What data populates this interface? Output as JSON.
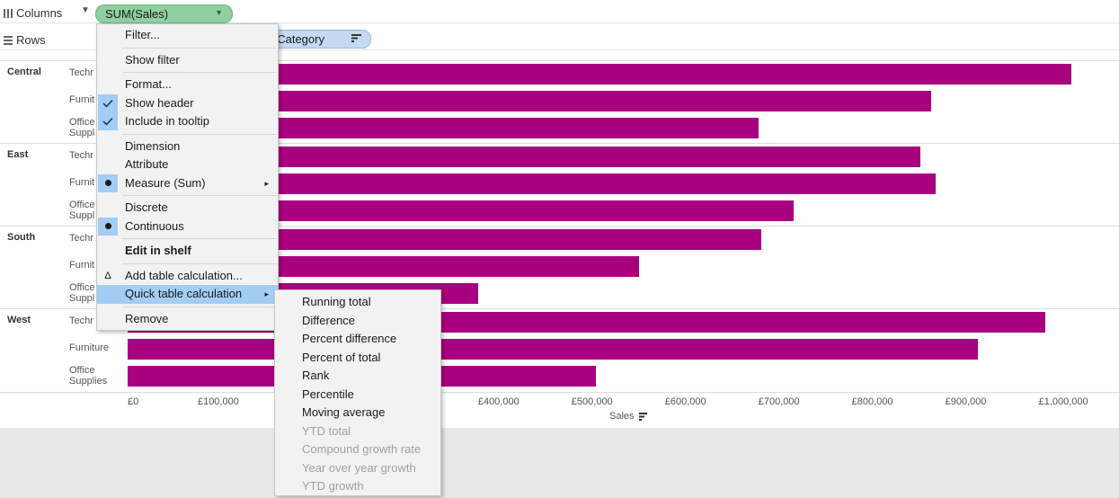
{
  "shelves": {
    "columns_label": "Columns",
    "columns_pill": "SUM(Sales)",
    "rows_label": "Rows",
    "rows_pill_visible": "t Category"
  },
  "chart_data": {
    "type": "bar",
    "orientation": "horizontal",
    "groups": [
      "Central",
      "East",
      "South",
      "West"
    ],
    "category_labels_visible": [
      [
        "Techr",
        "Furnit",
        "Office\nSuppl"
      ],
      [
        "Techr",
        "Furnit",
        "Office\nSuppl"
      ],
      [
        "Techr",
        "Furnit",
        "Office\nSuppl"
      ],
      [
        "Techr",
        "Furniture",
        "Office\nSupplies"
      ]
    ],
    "values": [
      [
        1010000,
        860000,
        675000
      ],
      [
        848000,
        865000,
        713000
      ],
      [
        678000,
        547000,
        375000
      ],
      [
        982000,
        910000,
        501000
      ]
    ],
    "xlim": [
      0,
      1040000
    ],
    "x_ticks": [
      "£0",
      "£100,000",
      "£400,000",
      "£500,000",
      "£600,000",
      "£700,000",
      "£800,000",
      "£900,000",
      "£1,000,000"
    ],
    "x_tick_values": [
      0,
      100000,
      400000,
      500000,
      600000,
      700000,
      800000,
      900000,
      1000000
    ],
    "xlabel": "Sales",
    "bar_color": "#a8007e"
  },
  "context_menu": {
    "items": [
      {
        "label": "Filter...",
        "state": "none"
      },
      {
        "sep": true
      },
      {
        "label": "Show filter",
        "state": "none"
      },
      {
        "sep": true
      },
      {
        "label": "Format...",
        "state": "none"
      },
      {
        "label": "Show header",
        "state": "check"
      },
      {
        "label": "Include in tooltip",
        "state": "check"
      },
      {
        "sep": true
      },
      {
        "label": "Dimension",
        "state": "none"
      },
      {
        "label": "Attribute",
        "state": "none"
      },
      {
        "label": "Measure (Sum)",
        "state": "radio",
        "submenu": true
      },
      {
        "sep": true
      },
      {
        "label": "Discrete",
        "state": "none"
      },
      {
        "label": "Continuous",
        "state": "radio"
      },
      {
        "sep": true
      },
      {
        "label": "Edit in shelf",
        "state": "none",
        "bold": true
      },
      {
        "sep": true
      },
      {
        "label": "Add table calculation...",
        "state": "delta"
      },
      {
        "label": "Quick table calculation",
        "state": "none",
        "submenu": true,
        "highlighted": true
      },
      {
        "sep": true
      },
      {
        "label": "Remove",
        "state": "none"
      }
    ]
  },
  "submenu": {
    "items": [
      {
        "label": "Running total",
        "enabled": true
      },
      {
        "label": "Difference",
        "enabled": true
      },
      {
        "label": "Percent difference",
        "enabled": true
      },
      {
        "label": "Percent of total",
        "enabled": true
      },
      {
        "label": "Rank",
        "enabled": true
      },
      {
        "label": "Percentile",
        "enabled": true
      },
      {
        "label": "Moving average",
        "enabled": true
      },
      {
        "label": "YTD total",
        "enabled": false
      },
      {
        "label": "Compound growth rate",
        "enabled": false
      },
      {
        "label": "Year over year growth",
        "enabled": false
      },
      {
        "label": "YTD growth",
        "enabled": false
      }
    ]
  }
}
